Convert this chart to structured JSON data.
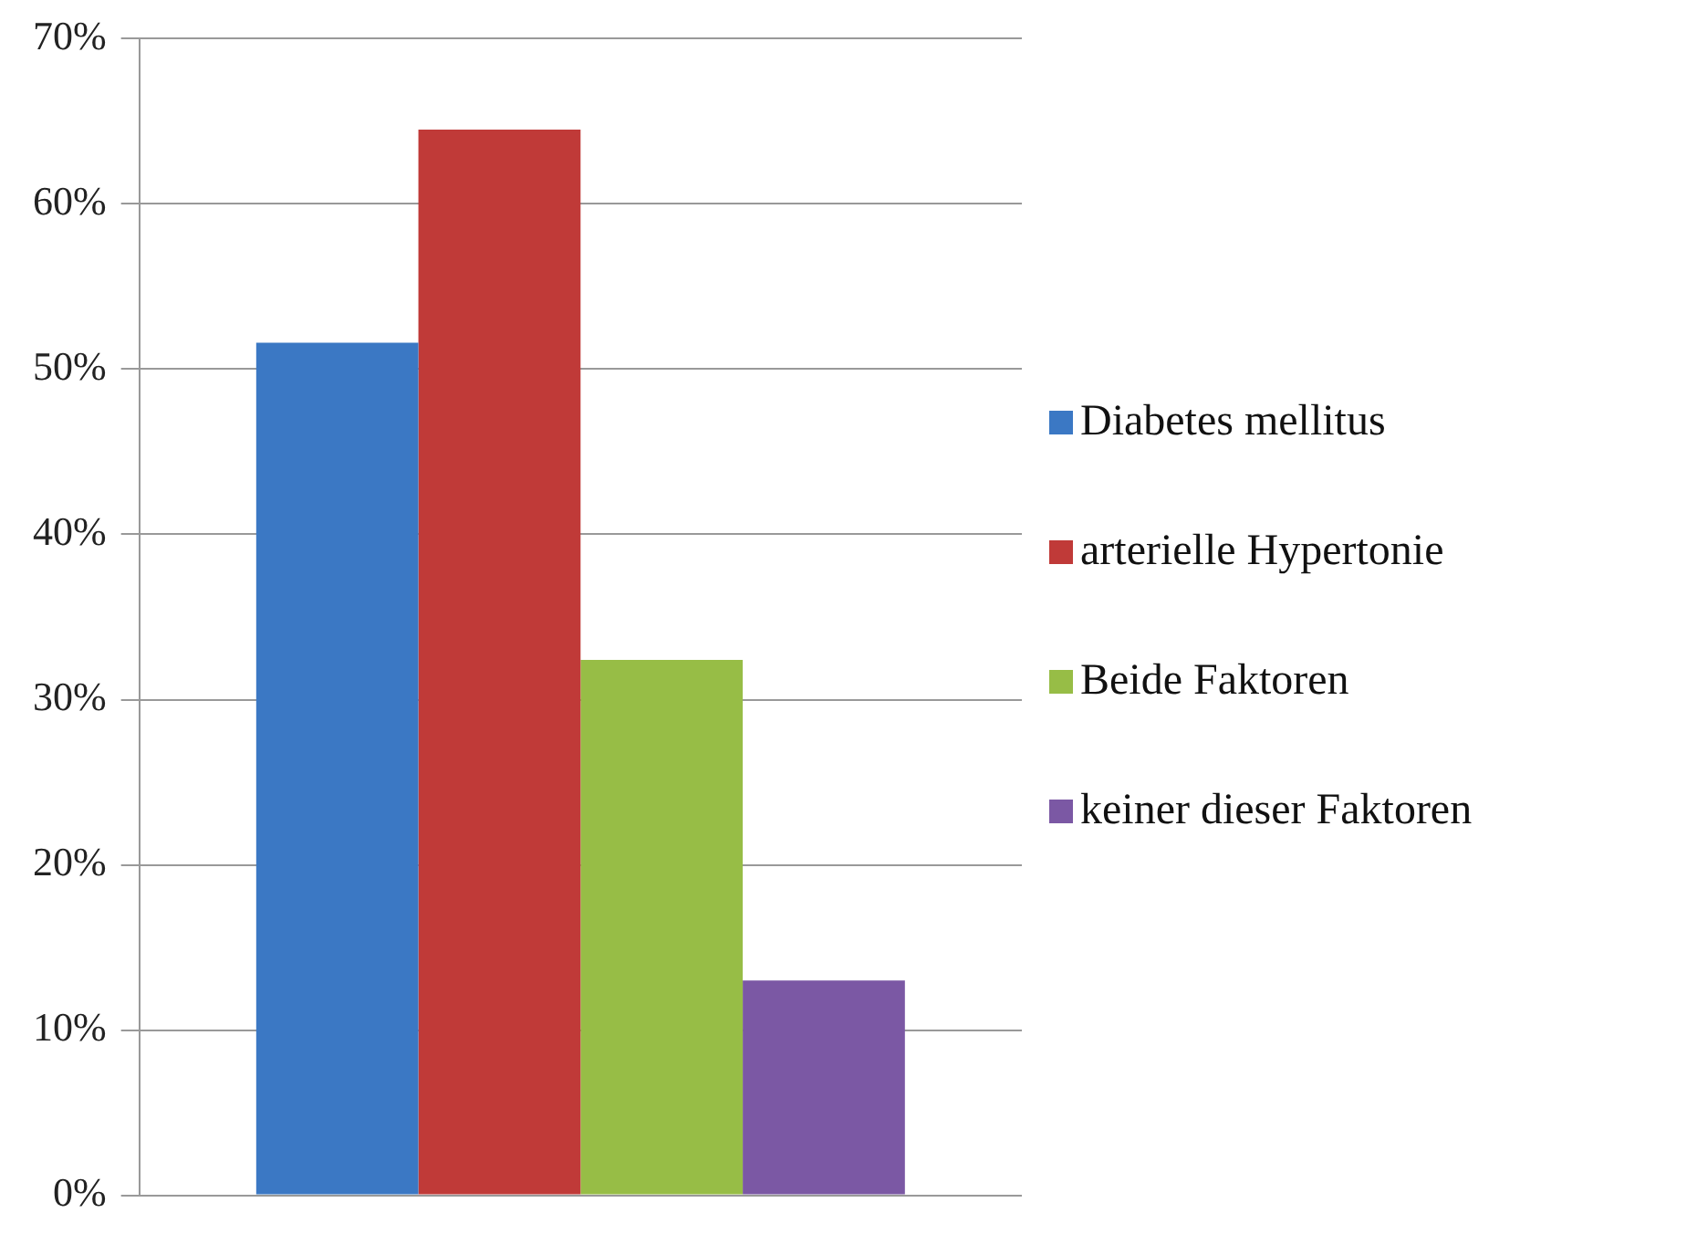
{
  "chart_data": {
    "type": "bar",
    "categories": [
      null
    ],
    "series": [
      {
        "name": "Diabetes mellitus",
        "color": "#3b78c4",
        "values": [
          51.6
        ]
      },
      {
        "name": "arterielle Hypertonie",
        "color": "#c03a38",
        "values": [
          64.5
        ]
      },
      {
        "name": "Beide Faktoren",
        "color": "#97bd46",
        "values": [
          32.4
        ]
      },
      {
        "name": "keiner dieser Faktoren",
        "color": "#7b58a4",
        "values": [
          13.0
        ]
      }
    ],
    "ylim": [
      0,
      70
    ],
    "yticks": [
      {
        "value": 0,
        "label": "0%"
      },
      {
        "value": 10,
        "label": "10%"
      },
      {
        "value": 20,
        "label": "20%"
      },
      {
        "value": 30,
        "label": "30%"
      },
      {
        "value": 40,
        "label": "40%"
      },
      {
        "value": 50,
        "label": "50%"
      },
      {
        "value": 60,
        "label": "60%"
      },
      {
        "value": 70,
        "label": "70%"
      }
    ],
    "grid": "y",
    "legend": "right",
    "tick_labels": "y"
  }
}
